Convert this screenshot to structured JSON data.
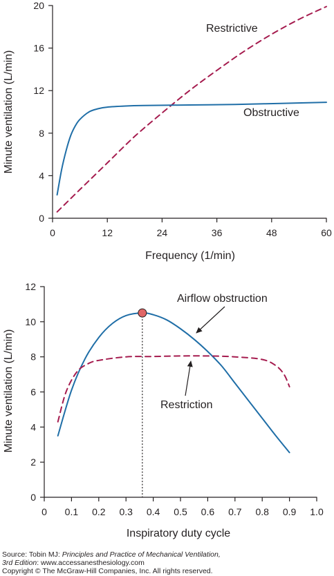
{
  "colors": {
    "obstructive": "#1f6ea7",
    "restrictive": "#a51b4e",
    "axis": "#231f20",
    "marker": "#e06666"
  },
  "chart_data": [
    {
      "type": "line",
      "xlabel": "Frequency (1/min)",
      "ylabel": "Minute ventilation (L/min)",
      "xlim": [
        0,
        60
      ],
      "ylim": [
        0,
        20
      ],
      "xticks": [
        0,
        12,
        24,
        36,
        48,
        60
      ],
      "yticks": [
        0,
        4,
        8,
        12,
        16,
        20
      ],
      "series": [
        {
          "name": "Restrictive",
          "style": "dashed",
          "x": [
            1,
            6,
            12,
            18,
            24,
            30,
            36,
            42,
            48,
            54,
            60
          ],
          "y": [
            0.6,
            2.7,
            5.2,
            7.7,
            9.9,
            12.0,
            13.9,
            15.7,
            17.3,
            18.7,
            19.9
          ]
        },
        {
          "name": "Obstructive",
          "style": "solid",
          "x": [
            1,
            2,
            3,
            4,
            5,
            6,
            8,
            10,
            12,
            16,
            20,
            30,
            40,
            50,
            60
          ],
          "y": [
            2.2,
            4.6,
            6.4,
            7.8,
            8.7,
            9.3,
            10.0,
            10.3,
            10.45,
            10.55,
            10.6,
            10.65,
            10.7,
            10.8,
            10.9
          ]
        }
      ],
      "annotations": [
        {
          "text": "Restrictive"
        },
        {
          "text": "Obstructive"
        }
      ]
    },
    {
      "type": "line",
      "xlabel": "Inspiratory duty cycle",
      "ylabel": "Minute ventilation (L/min)",
      "xlim": [
        0,
        1.0
      ],
      "ylim": [
        0,
        12
      ],
      "xticks": [
        "0",
        "0.1",
        "0.2",
        "0.3",
        "0.4",
        "0.5",
        "0.6",
        "0.7",
        "0.8",
        "0.9",
        "1.0"
      ],
      "yticks": [
        0,
        2,
        4,
        6,
        8,
        10,
        12
      ],
      "series": [
        {
          "name": "Airflow obstruction",
          "style": "solid",
          "x": [
            0.05,
            0.1,
            0.15,
            0.2,
            0.25,
            0.3,
            0.36,
            0.4,
            0.45,
            0.5,
            0.55,
            0.6,
            0.65,
            0.7,
            0.75,
            0.8,
            0.85,
            0.9
          ],
          "y": [
            3.5,
            6.1,
            7.9,
            9.1,
            9.9,
            10.35,
            10.5,
            10.4,
            10.1,
            9.6,
            9.0,
            8.3,
            7.5,
            6.5,
            5.5,
            4.5,
            3.5,
            2.55
          ]
        },
        {
          "name": "Restriction",
          "style": "dashed",
          "x": [
            0.05,
            0.08,
            0.12,
            0.16,
            0.2,
            0.3,
            0.4,
            0.5,
            0.6,
            0.7,
            0.8,
            0.85,
            0.88,
            0.9
          ],
          "y": [
            4.3,
            6.0,
            7.15,
            7.6,
            7.8,
            8.0,
            8.02,
            8.05,
            8.05,
            8.0,
            7.85,
            7.5,
            7.0,
            6.3
          ]
        }
      ],
      "marker": {
        "x": 0.36,
        "y": 10.5
      },
      "annotations": [
        {
          "text": "Airflow obstruction"
        },
        {
          "text": "Restriction"
        }
      ]
    }
  ],
  "footer": {
    "source_prefix": "Source: Tobin MJ: ",
    "source_title": "Principles and Practice of Mechanical Ventilation,",
    "edition": "3rd Edition",
    "website": ": www.accessanesthesiology.com",
    "copyright": "Copyright © The McGraw-Hill Companies, Inc. All rights reserved."
  }
}
